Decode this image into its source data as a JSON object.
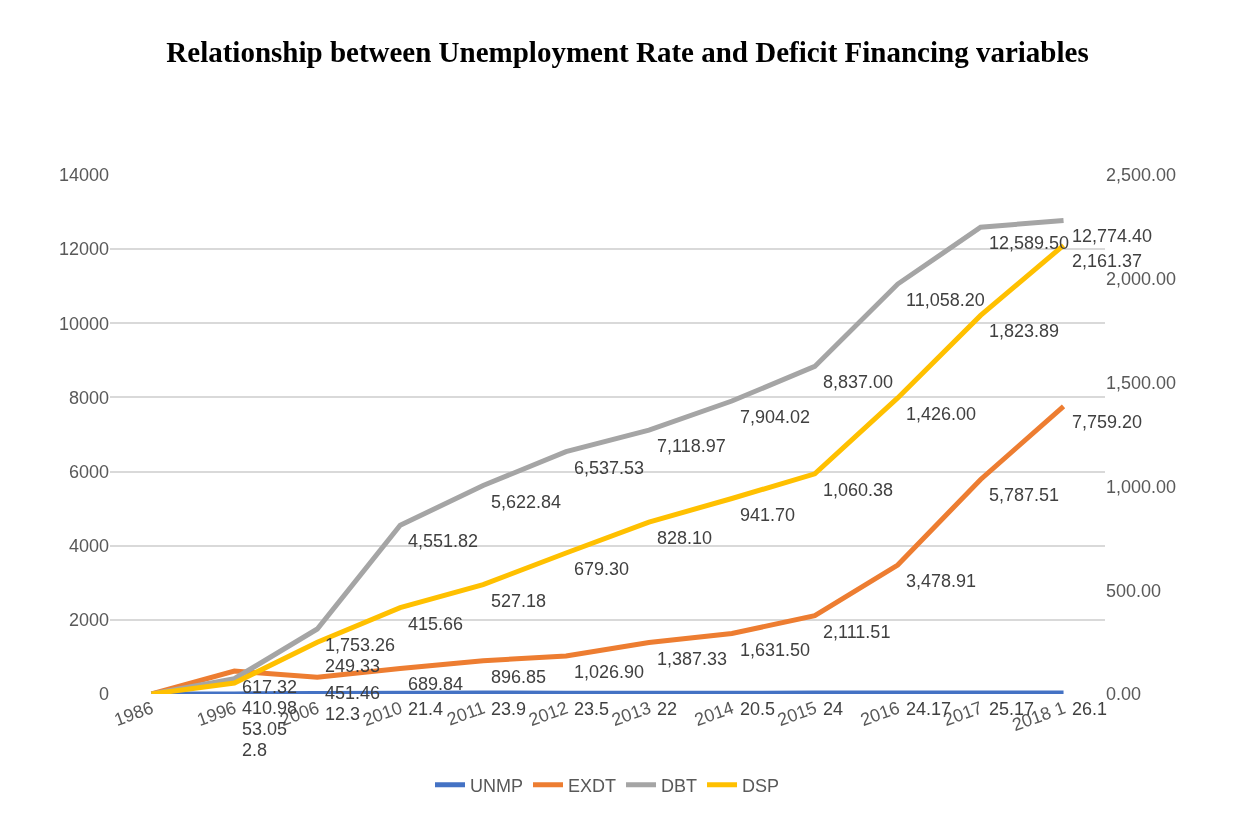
{
  "chart_data": {
    "type": "line",
    "title": "Relationship between Unemployment Rate and Deficit Financing variables",
    "categories": [
      "1986",
      "1996",
      "2006",
      "2010",
      "2011",
      "2012",
      "2013",
      "2014",
      "2015",
      "2016",
      "2017",
      "2018 1"
    ],
    "series": [
      {
        "name": "UNMP",
        "color": "#4472c4",
        "values": [
          0,
          2.8,
          12.3,
          21.4,
          23.9,
          23.5,
          22,
          20.5,
          24,
          24.17,
          25.17,
          26.1
        ],
        "value_labels": [
          null,
          "2.8",
          "12.3",
          "21.4",
          "23.9",
          "23.5",
          "22",
          "20.5",
          "24",
          "24.17",
          "25.17",
          "26.1"
        ]
      },
      {
        "name": "EXDT",
        "color": "#ed7d31",
        "values": [
          0,
          617.32,
          451.46,
          689.84,
          896.85,
          1026.9,
          1387.33,
          1631.5,
          2111.51,
          3478.91,
          5787.51,
          7759.2
        ],
        "value_labels": [
          null,
          "617.32",
          "451.46",
          "689.84",
          "896.85",
          "1,026.90",
          "1,387.33",
          "1,631.50",
          "2,111.51",
          "3,478.91",
          "5,787.51",
          "7,759.20"
        ]
      },
      {
        "name": "DBT",
        "color": "#a5a5a5",
        "values": [
          0,
          410.98,
          1753.26,
          4551.82,
          5622.84,
          6537.53,
          7118.97,
          7904.02,
          8837,
          11058.2,
          12589.5,
          12774.4
        ],
        "value_labels": [
          null,
          "410.98",
          "1,753.26",
          "4,551.82",
          "5,622.84",
          "6,537.53",
          "7,118.97",
          "7,904.02",
          "8,837.00",
          "11,058.20",
          "12,589.50",
          "12,774.40"
        ]
      },
      {
        "name": "DSP",
        "color": "#ffc000",
        "axis": "y2",
        "values": [
          0,
          53.05,
          249.33,
          415.66,
          527.18,
          679.3,
          828.1,
          941.7,
          1060.38,
          1426,
          1823.89,
          2161.37
        ],
        "value_labels": [
          null,
          "53.05",
          "249.33",
          "415.66",
          "527.18",
          "679.30",
          "828.10",
          "941.70",
          "1,060.38",
          "1,426.00",
          "1,823.89",
          "2,161.37"
        ]
      }
    ],
    "ylim": [
      0,
      14000
    ],
    "yticks": [
      0,
      2000,
      4000,
      6000,
      8000,
      10000,
      12000,
      14000
    ],
    "y2lim": [
      0,
      2500
    ],
    "y2ticks": [
      {
        "value": 0,
        "label": "0.00"
      },
      {
        "value": 500,
        "label": "500.00"
      },
      {
        "value": 1000,
        "label": "1,000.00"
      },
      {
        "value": 1500,
        "label": "1,500.00"
      },
      {
        "value": 2000,
        "label": "2,000.00"
      },
      {
        "value": 2500,
        "label": "2,500.00"
      }
    ],
    "grid": "y",
    "legend": "bottom",
    "marker": "none",
    "line_style": "solid"
  }
}
